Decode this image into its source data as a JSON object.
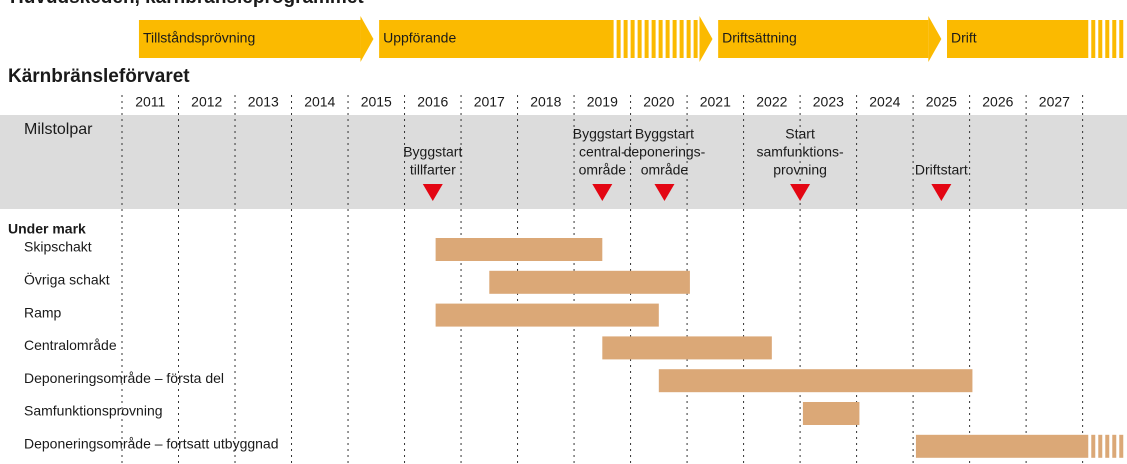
{
  "chart_data": {
    "type": "gantt",
    "title": "Huvudskeden, kärnbränsleprogrammet",
    "phases": [
      {
        "name": "Tillståndsprövning",
        "start": 2011.3,
        "end": 2015.45
      },
      {
        "name": "Uppförande",
        "start": 2015.55,
        "end": 2021.45,
        "fade_from": 2019.7
      },
      {
        "name": "Driftsättning",
        "start": 2021.55,
        "end": 2025.5
      },
      {
        "name": "Drift",
        "start": 2025.6,
        "end": 2028.75,
        "fade_from": 2028.1
      }
    ],
    "subtitle": "Kärnbränsleförvaret",
    "categories": [
      "2011",
      "2012",
      "2013",
      "2014",
      "2015",
      "2016",
      "2017",
      "2018",
      "2019",
      "2020",
      "2021",
      "2022",
      "2023",
      "2024",
      "2025",
      "2026",
      "2027"
    ],
    "xlim": [
      2011,
      2028.75
    ],
    "xticks": [
      2011,
      2012,
      2013,
      2014,
      2015,
      2016,
      2017,
      2018,
      2019,
      2020,
      2021,
      2022,
      2023,
      2024,
      2025,
      2026,
      2027,
      2028
    ],
    "grid": true,
    "milestone_title": "Milstolpar",
    "milestone_color": "#e30613",
    "milestones": [
      {
        "label": [
          "Byggstart",
          "tillfarter"
        ],
        "value": 2016.5
      },
      {
        "label": [
          "Byggstart",
          "central-",
          "område"
        ],
        "value": 2019.5
      },
      {
        "label": [
          "Byggstart",
          "deponerings-",
          "område"
        ],
        "value": 2020.6
      },
      {
        "label": [
          "Start",
          "samfunktions-",
          "provning"
        ],
        "value": 2023.0
      },
      {
        "label": [
          "Driftstart"
        ],
        "value": 2025.5
      }
    ],
    "group": "Under mark",
    "phase_color": "#fbba00",
    "bar_color": "#dba877",
    "tasks": [
      {
        "name": "Skipschakt",
        "start": 2016.55,
        "end": 2019.5
      },
      {
        "name": "Övriga schakt",
        "start": 2017.5,
        "end": 2021.05
      },
      {
        "name": "Ramp",
        "start": 2016.55,
        "end": 2020.5
      },
      {
        "name": "Centralområde",
        "start": 2019.5,
        "end": 2022.5
      },
      {
        "name": "Deponeringsområde – första del",
        "start": 2020.5,
        "end": 2026.05
      },
      {
        "name": "Samfunktionsprovning",
        "start": 2023.05,
        "end": 2024.05
      },
      {
        "name": "Deponeringsområde – fortsatt utbyggnad",
        "start": 2025.05,
        "end": 2028.75,
        "fade_from": 2028.1
      }
    ]
  }
}
